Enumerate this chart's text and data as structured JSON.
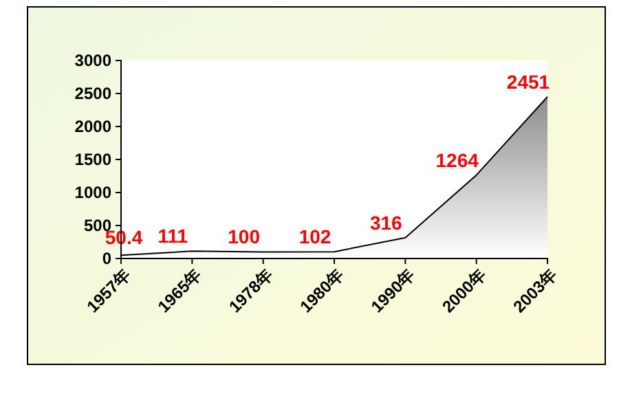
{
  "chart_data": {
    "type": "area",
    "categories": [
      "1957年",
      "1965年",
      "1978年",
      "1980年",
      "1990年",
      "2000年",
      "2003年"
    ],
    "series": [
      {
        "color": "#8c8c8c",
        "values": [
          50.4,
          111,
          100,
          102,
          316,
          1264,
          2451
        ]
      }
    ],
    "ylim": [
      0,
      3000
    ],
    "yticks": [
      0,
      500,
      1000,
      1500,
      2000,
      2500,
      3000
    ],
    "data_labels": true
  }
}
